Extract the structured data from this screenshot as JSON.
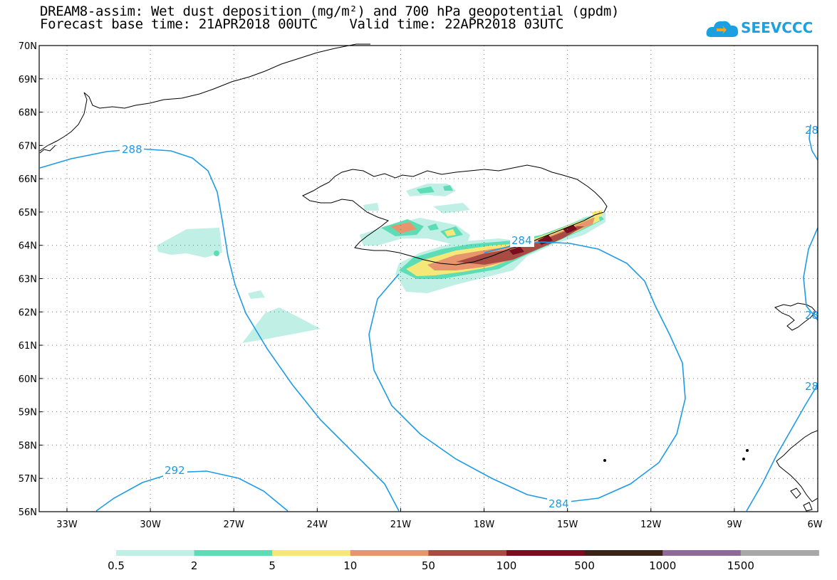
{
  "title": {
    "line1": "DREAM8-assim: Wet dust deposition (mg/m²) and 700 hPa geopotential (gpdm)",
    "line2": "Forecast base time: 21APR2018 00UTC    Valid time: 22APR2018 03UTC"
  },
  "logo": {
    "text": "SEEVCCC",
    "color": "#1ba1e2"
  },
  "map": {
    "lat_labels": [
      "70N",
      "69N",
      "68N",
      "67N",
      "66N",
      "65N",
      "64N",
      "63N",
      "62N",
      "61N",
      "60N",
      "59N",
      "58N",
      "57N",
      "56N"
    ],
    "lon_labels": [
      "33W",
      "30W",
      "27W",
      "24W",
      "21W",
      "18W",
      "15W",
      "12W",
      "9W",
      "6W"
    ],
    "contour_color": "#1e9be6",
    "contour_labels": [
      "288",
      "284",
      "284",
      "292",
      "28",
      "28",
      "28"
    ]
  },
  "legend": {
    "colors": [
      "#c0efe6",
      "#5cddb5",
      "#f5e879",
      "#e8956d",
      "#a94b43",
      "#7a0d1f",
      "#3a2418",
      "#8f6a99",
      "#a8a8a8"
    ],
    "labels": [
      "0.5",
      "2",
      "5",
      "10",
      "50",
      "100",
      "500",
      "1000",
      "1500"
    ]
  }
}
